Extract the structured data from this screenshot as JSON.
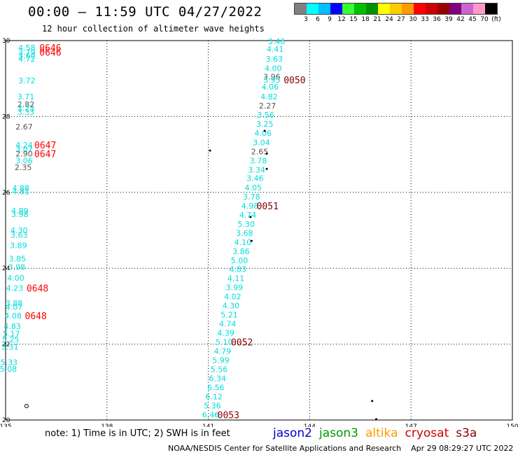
{
  "title": "00:00 – 11:59 UTC 04/27/2022",
  "subtitle": "12 hour collection of altimeter wave heights",
  "legend": {
    "colors": [
      "#808080",
      "#00ffff",
      "#00bfff",
      "#0000ff",
      "#33ff33",
      "#00c000",
      "#009000",
      "#ffff00",
      "#ffcc00",
      "#ff9900",
      "#ff0000",
      "#cc0000",
      "#990000",
      "#800080",
      "#cc66cc",
      "#ff99cc",
      "#000000"
    ],
    "labels": [
      "3",
      "6",
      "9",
      "12",
      "15",
      "18",
      "21",
      "24",
      "27",
      "30",
      "33",
      "36",
      "39",
      "42",
      "45",
      "70",
      "(ft)"
    ]
  },
  "note": "note:  1) Time is in UTC;  2) SWH is in feet",
  "satellites": [
    {
      "name": "jason2",
      "color": "#0000cc"
    },
    {
      "name": "jason3",
      "color": "#009900"
    },
    {
      "name": "altika",
      "color": "#ff9900"
    },
    {
      "name": "cryosat",
      "color": "#cc0000"
    },
    {
      "name": "s3a",
      "color": "#880000"
    }
  ],
  "credit": "NOAA/NESDIS Center for Satellite Applications and Research    Apr 29 08:29:27 UTC 2022",
  "chart_data": {
    "type": "scatter",
    "xlim": [
      135,
      150
    ],
    "ylim": [
      20,
      30
    ],
    "x_ticks": [
      "135",
      "138",
      "141",
      "144",
      "147",
      "150"
    ],
    "y_ticks": [
      "20",
      "22",
      "24",
      "26",
      "28",
      "30"
    ],
    "grid": true,
    "points": [
      {
        "x": 135.63,
        "y": 29.82,
        "label": "4.58",
        "color": "#00dddd"
      },
      {
        "x": 135.63,
        "y": 29.7,
        "label": "3.79",
        "color": "#00dddd"
      },
      {
        "x": 135.63,
        "y": 29.6,
        "label": "3.60",
        "color": "#00dddd"
      },
      {
        "x": 135.63,
        "y": 29.52,
        "label": "4.72",
        "color": "#00dddd"
      },
      {
        "x": 135.63,
        "y": 28.95,
        "label": "3.72",
        "color": "#00dddd"
      },
      {
        "x": 135.6,
        "y": 28.52,
        "label": "3.71",
        "color": "#00dddd"
      },
      {
        "x": 135.6,
        "y": 28.32,
        "label": "2.82",
        "color": "#555555"
      },
      {
        "x": 135.6,
        "y": 28.22,
        "label": "3.25",
        "color": "#00dddd"
      },
      {
        "x": 135.6,
        "y": 28.12,
        "label": "3.33",
        "color": "#00dddd"
      },
      {
        "x": 135.55,
        "y": 27.73,
        "label": "2.67",
        "color": "#555555"
      },
      {
        "x": 135.55,
        "y": 27.25,
        "label": "4.24",
        "color": "#00dddd"
      },
      {
        "x": 135.55,
        "y": 27.13,
        "label": "3.07",
        "color": "#00dddd"
      },
      {
        "x": 135.55,
        "y": 27.02,
        "label": "2.90",
        "color": "#555555"
      },
      {
        "x": 135.55,
        "y": 26.84,
        "label": "3.06",
        "color": "#00dddd"
      },
      {
        "x": 135.52,
        "y": 26.66,
        "label": "2.35",
        "color": "#555555"
      },
      {
        "x": 135.45,
        "y": 26.12,
        "label": "4.88",
        "color": "#00dddd"
      },
      {
        "x": 135.45,
        "y": 26.02,
        "label": "4.81",
        "color": "#00dddd"
      },
      {
        "x": 135.42,
        "y": 25.52,
        "label": "4.89",
        "color": "#00dddd"
      },
      {
        "x": 135.42,
        "y": 25.42,
        "label": "3.98",
        "color": "#00dddd"
      },
      {
        "x": 135.4,
        "y": 25.0,
        "label": "4.30",
        "color": "#00dddd"
      },
      {
        "x": 135.4,
        "y": 24.88,
        "label": "3.63",
        "color": "#00dddd"
      },
      {
        "x": 135.38,
        "y": 24.6,
        "label": "3.89",
        "color": "#00dddd"
      },
      {
        "x": 135.35,
        "y": 24.25,
        "label": "3.85",
        "color": "#00dddd"
      },
      {
        "x": 135.33,
        "y": 24.03,
        "label": "3.98",
        "color": "#00dddd"
      },
      {
        "x": 135.3,
        "y": 23.75,
        "label": "4.00",
        "color": "#00dddd"
      },
      {
        "x": 135.27,
        "y": 23.48,
        "label": "4.23",
        "color": "#00dddd"
      },
      {
        "x": 135.25,
        "y": 23.08,
        "label": "3.88",
        "color": "#00dddd"
      },
      {
        "x": 135.25,
        "y": 22.98,
        "label": "4.07",
        "color": "#00dddd"
      },
      {
        "x": 135.22,
        "y": 22.75,
        "label": "4.08",
        "color": "#00dddd"
      },
      {
        "x": 135.2,
        "y": 22.47,
        "label": "4.83",
        "color": "#00dddd"
      },
      {
        "x": 135.17,
        "y": 22.28,
        "label": "5.17",
        "color": "#00dddd"
      },
      {
        "x": 135.15,
        "y": 22.12,
        "label": "5.25",
        "color": "#00dddd"
      },
      {
        "x": 135.13,
        "y": 21.93,
        "label": "5.31",
        "color": "#00dddd"
      },
      {
        "x": 135.1,
        "y": 21.52,
        "label": "5.33",
        "color": "#00dddd"
      },
      {
        "x": 135.08,
        "y": 21.35,
        "label": "5.08",
        "color": "#00dddd"
      },
      {
        "x": 143.02,
        "y": 29.98,
        "label": "3.46",
        "color": "#00dddd"
      },
      {
        "x": 142.98,
        "y": 29.78,
        "label": "4.41",
        "color": "#00dddd"
      },
      {
        "x": 142.95,
        "y": 29.52,
        "label": "3.63",
        "color": "#00dddd"
      },
      {
        "x": 142.92,
        "y": 29.27,
        "label": "4.00",
        "color": "#00dddd"
      },
      {
        "x": 142.88,
        "y": 29.05,
        "label": "3.96",
        "color": "#555555"
      },
      {
        "x": 142.88,
        "y": 28.97,
        "label": "3.95",
        "color": "#00dddd"
      },
      {
        "x": 142.83,
        "y": 28.78,
        "label": "4.06",
        "color": "#00dddd"
      },
      {
        "x": 142.8,
        "y": 28.52,
        "label": "4.82",
        "color": "#00dddd"
      },
      {
        "x": 142.75,
        "y": 28.28,
        "label": "2.27",
        "color": "#555555"
      },
      {
        "x": 142.7,
        "y": 28.04,
        "label": "3.56",
        "color": "#00dddd"
      },
      {
        "x": 142.67,
        "y": 27.8,
        "label": "3.25",
        "color": "#00dddd"
      },
      {
        "x": 142.62,
        "y": 27.56,
        "label": "4.06",
        "color": "#00dddd"
      },
      {
        "x": 142.57,
        "y": 27.32,
        "label": "3.04",
        "color": "#00dddd"
      },
      {
        "x": 142.52,
        "y": 27.08,
        "label": "2.65",
        "color": "#555555"
      },
      {
        "x": 142.48,
        "y": 26.84,
        "label": "3.78",
        "color": "#00dddd"
      },
      {
        "x": 142.43,
        "y": 26.6,
        "label": "3.34",
        "color": "#00dddd"
      },
      {
        "x": 142.38,
        "y": 26.37,
        "label": "3.46",
        "color": "#00dddd"
      },
      {
        "x": 142.33,
        "y": 26.13,
        "label": "4.05",
        "color": "#00dddd"
      },
      {
        "x": 142.28,
        "y": 25.89,
        "label": "3.78",
        "color": "#00dddd"
      },
      {
        "x": 142.23,
        "y": 25.65,
        "label": "4.98",
        "color": "#00dddd"
      },
      {
        "x": 142.17,
        "y": 25.41,
        "label": "4.74",
        "color": "#00dddd"
      },
      {
        "x": 142.12,
        "y": 25.17,
        "label": "5.30",
        "color": "#00dddd"
      },
      {
        "x": 142.07,
        "y": 24.93,
        "label": "3.68",
        "color": "#00dddd"
      },
      {
        "x": 142.02,
        "y": 24.69,
        "label": "4.10",
        "color": "#00dddd"
      },
      {
        "x": 141.97,
        "y": 24.45,
        "label": "3.86",
        "color": "#00dddd"
      },
      {
        "x": 141.92,
        "y": 24.21,
        "label": "5.00",
        "color": "#00dddd"
      },
      {
        "x": 141.87,
        "y": 23.98,
        "label": "4.83",
        "color": "#00dddd"
      },
      {
        "x": 141.82,
        "y": 23.74,
        "label": "4.11",
        "color": "#00dddd"
      },
      {
        "x": 141.77,
        "y": 23.5,
        "label": "3.99",
        "color": "#00dddd"
      },
      {
        "x": 141.72,
        "y": 23.26,
        "label": "4.02",
        "color": "#00dddd"
      },
      {
        "x": 141.67,
        "y": 23.02,
        "label": "4.30",
        "color": "#00dddd"
      },
      {
        "x": 141.62,
        "y": 22.78,
        "label": "5.21",
        "color": "#00dddd"
      },
      {
        "x": 141.57,
        "y": 22.54,
        "label": "4.74",
        "color": "#00dddd"
      },
      {
        "x": 141.52,
        "y": 22.3,
        "label": "4.39",
        "color": "#00dddd"
      },
      {
        "x": 141.47,
        "y": 22.06,
        "label": "5.10",
        "color": "#00dddd"
      },
      {
        "x": 141.42,
        "y": 21.82,
        "label": "4.79",
        "color": "#00dddd"
      },
      {
        "x": 141.37,
        "y": 21.58,
        "label": "5.99",
        "color": "#00dddd"
      },
      {
        "x": 141.32,
        "y": 21.34,
        "label": "5.56",
        "color": "#00dddd"
      },
      {
        "x": 141.27,
        "y": 21.1,
        "label": "6.34",
        "color": "#00dddd"
      },
      {
        "x": 141.22,
        "y": 20.86,
        "label": "6.56",
        "color": "#00dddd"
      },
      {
        "x": 141.17,
        "y": 20.62,
        "label": "6.12",
        "color": "#00dddd"
      },
      {
        "x": 141.12,
        "y": 20.38,
        "label": "5.36",
        "color": "#00dddd"
      },
      {
        "x": 141.07,
        "y": 20.14,
        "label": "6.46",
        "color": "#00dddd"
      }
    ],
    "time_labels": [
      {
        "x": 136.0,
        "y": 29.82,
        "label": "0646",
        "color": "#ff0000"
      },
      {
        "x": 136.0,
        "y": 29.7,
        "label": "0646",
        "color": "#ff0000"
      },
      {
        "x": 135.85,
        "y": 27.25,
        "label": "0647",
        "color": "#ff0000"
      },
      {
        "x": 135.85,
        "y": 27.02,
        "label": "0647",
        "color": "#ff0000"
      },
      {
        "x": 135.62,
        "y": 23.48,
        "label": "0648",
        "color": "#ff0000"
      },
      {
        "x": 135.57,
        "y": 22.75,
        "label": "0648",
        "color": "#ff0000"
      },
      {
        "x": 143.23,
        "y": 28.97,
        "label": "0050",
        "color": "#880000"
      },
      {
        "x": 142.43,
        "y": 25.65,
        "label": "0051",
        "color": "#880000"
      },
      {
        "x": 141.67,
        "y": 22.06,
        "label": "0052",
        "color": "#880000"
      },
      {
        "x": 141.27,
        "y": 20.14,
        "label": "0053",
        "color": "#880000"
      }
    ],
    "markers": [
      {
        "x": 141.05,
        "y": 27.1,
        "shape": "dot"
      },
      {
        "x": 142.67,
        "y": 27.62,
        "shape": "dot"
      },
      {
        "x": 142.73,
        "y": 27.02,
        "shape": "dot"
      },
      {
        "x": 142.73,
        "y": 26.62,
        "shape": "dot"
      },
      {
        "x": 142.25,
        "y": 25.35,
        "shape": "dot"
      },
      {
        "x": 142.28,
        "y": 24.72,
        "shape": "dot"
      },
      {
        "x": 135.62,
        "y": 20.37,
        "shape": "ring"
      },
      {
        "x": 145.85,
        "y": 20.5,
        "shape": "dot"
      },
      {
        "x": 145.97,
        "y": 20.02,
        "shape": "dot"
      }
    ]
  }
}
